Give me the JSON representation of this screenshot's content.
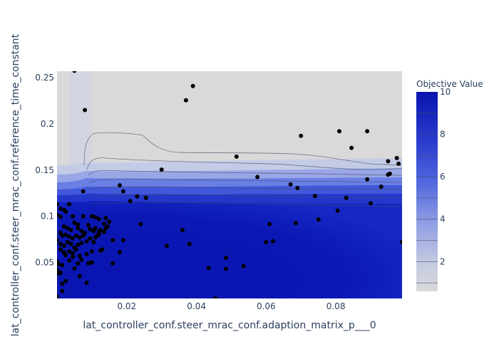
{
  "chart_data": {
    "type": "contour",
    "title": "",
    "xlabel": "lat_controller_conf.steer_mrac_conf.adaption_matrix_p___0",
    "ylabel": "lat_controller_conf.steer_mrac_conf.reference_time_constant",
    "xlim": [
      0.0,
      0.099
    ],
    "ylim": [
      0.011,
      0.257
    ],
    "x_ticks": [
      {
        "value": 0.02,
        "label": "0.02"
      },
      {
        "value": 0.04,
        "label": "0.04"
      },
      {
        "value": 0.06,
        "label": "0.06"
      },
      {
        "value": 0.08,
        "label": "0.08"
      }
    ],
    "y_ticks": [
      {
        "value": 0.05,
        "label": "0.05"
      },
      {
        "value": 0.1,
        "label": "0.1"
      },
      {
        "value": 0.15,
        "label": "0.15"
      },
      {
        "value": 0.2,
        "label": "0.2"
      },
      {
        "value": 0.25,
        "label": "0.25"
      }
    ],
    "colorbar": {
      "title": "Objective Value",
      "range": [
        0.6,
        10
      ],
      "ticks": [
        {
          "value": 2,
          "label": "2"
        },
        {
          "value": 4,
          "label": "4"
        },
        {
          "value": 6,
          "label": "6"
        },
        {
          "value": 8,
          "label": "8"
        },
        {
          "value": 10,
          "label": "10"
        }
      ],
      "color_low": "#d9d9d9",
      "color_high": "#0a14b0"
    },
    "grid": false,
    "points": [
      [
        0.005,
        0.2575
      ],
      [
        0.039,
        0.241
      ],
      [
        0.037,
        0.2255
      ],
      [
        0.008,
        0.215
      ],
      [
        0.07,
        0.187
      ],
      [
        0.081,
        0.192
      ],
      [
        0.089,
        0.192
      ],
      [
        0.0845,
        0.174
      ],
      [
        0.0515,
        0.1645
      ],
      [
        0.03,
        0.1505
      ],
      [
        0.0975,
        0.163
      ],
      [
        0.098,
        0.157
      ],
      [
        0.095,
        0.1595
      ],
      [
        0.0955,
        0.146
      ],
      [
        0.095,
        0.145
      ],
      [
        0.0575,
        0.1425
      ],
      [
        0.089,
        0.14
      ],
      [
        0.067,
        0.1345
      ],
      [
        0.069,
        0.1305
      ],
      [
        0.093,
        0.132
      ],
      [
        0.018,
        0.1335
      ],
      [
        0.019,
        0.127
      ],
      [
        0.0075,
        0.127
      ],
      [
        0.074,
        0.122
      ],
      [
        0.083,
        0.12
      ],
      [
        0.023,
        0.1215
      ],
      [
        0.0255,
        0.12
      ],
      [
        0.021,
        0.1165
      ],
      [
        0.0805,
        0.106
      ],
      [
        0.09,
        0.114
      ],
      [
        0.0035,
        0.113
      ],
      [
        0.0,
        0.113
      ],
      [
        0.002,
        0.107
      ],
      [
        0.0025,
        0.105
      ],
      [
        0.001,
        0.108
      ],
      [
        0.0,
        0.1015
      ],
      [
        0.001,
        0.0995
      ],
      [
        0.0045,
        0.1
      ],
      [
        0.0075,
        0.1
      ],
      [
        0.01,
        0.1
      ],
      [
        0.011,
        0.099
      ],
      [
        0.012,
        0.097
      ],
      [
        0.014,
        0.098
      ],
      [
        0.0135,
        0.092
      ],
      [
        0.075,
        0.0965
      ],
      [
        0.0685,
        0.0925
      ],
      [
        0.061,
        0.0915
      ],
      [
        0.024,
        0.0915
      ],
      [
        0.036,
        0.085
      ],
      [
        0.0145,
        0.089
      ],
      [
        0.015,
        0.094
      ],
      [
        0.009,
        0.0905
      ],
      [
        0.0095,
        0.086
      ],
      [
        0.0105,
        0.084
      ],
      [
        0.011,
        0.087
      ],
      [
        0.012,
        0.083
      ],
      [
        0.0125,
        0.085
      ],
      [
        0.0135,
        0.083
      ],
      [
        0.014,
        0.087
      ],
      [
        0.002,
        0.089
      ],
      [
        0.003,
        0.087
      ],
      [
        0.004,
        0.085
      ],
      [
        0.005,
        0.093
      ],
      [
        0.006,
        0.091
      ],
      [
        0.006,
        0.087
      ],
      [
        0.007,
        0.084
      ],
      [
        0.0075,
        0.079
      ],
      [
        0.008,
        0.082
      ],
      [
        0.001,
        0.082
      ],
      [
        0.0015,
        0.079
      ],
      [
        0.0025,
        0.08
      ],
      [
        0.0035,
        0.078
      ],
      [
        0.0045,
        0.076
      ],
      [
        0.0055,
        0.079
      ],
      [
        0.0065,
        0.077
      ],
      [
        0.0,
        0.074
      ],
      [
        0.001,
        0.07
      ],
      [
        0.002,
        0.068
      ],
      [
        0.003,
        0.072
      ],
      [
        0.004,
        0.07
      ],
      [
        0.005,
        0.066
      ],
      [
        0.006,
        0.069
      ],
      [
        0.007,
        0.071
      ],
      [
        0.0085,
        0.073
      ],
      [
        0.0095,
        0.076
      ],
      [
        0.0105,
        0.072
      ],
      [
        0.011,
        0.077
      ],
      [
        0.0115,
        0.079
      ],
      [
        0.012,
        0.08
      ],
      [
        0.016,
        0.074
      ],
      [
        0.019,
        0.074
      ],
      [
        0.0125,
        0.063
      ],
      [
        0.013,
        0.064
      ],
      [
        0.018,
        0.061
      ],
      [
        0.001,
        0.064
      ],
      [
        0.002,
        0.061
      ],
      [
        0.0025,
        0.058
      ],
      [
        0.0035,
        0.062
      ],
      [
        0.0045,
        0.06
      ],
      [
        0.0055,
        0.064
      ],
      [
        0.0065,
        0.057
      ],
      [
        0.007,
        0.053
      ],
      [
        0.0085,
        0.059
      ],
      [
        0.01,
        0.062
      ],
      [
        0.0,
        0.051
      ],
      [
        0.0005,
        0.048
      ],
      [
        0.0015,
        0.047
      ],
      [
        0.0035,
        0.052
      ],
      [
        0.0045,
        0.056
      ],
      [
        0.006,
        0.049
      ],
      [
        0.009,
        0.049
      ],
      [
        0.01,
        0.05
      ],
      [
        0.016,
        0.049
      ],
      [
        0.005,
        0.0435
      ],
      [
        0.0,
        0.042
      ],
      [
        0.001,
        0.039
      ],
      [
        0.0065,
        0.035
      ],
      [
        0.0085,
        0.028
      ],
      [
        0.0005,
        0.038
      ],
      [
        0.0015,
        0.027
      ],
      [
        0.0025,
        0.03
      ],
      [
        0.0015,
        0.019
      ],
      [
        0.0,
        0.013
      ],
      [
        0.0315,
        0.068
      ],
      [
        0.038,
        0.07
      ],
      [
        0.0485,
        0.055
      ],
      [
        0.0435,
        0.044
      ],
      [
        0.0485,
        0.043
      ],
      [
        0.0535,
        0.046
      ],
      [
        0.0455,
        0.011
      ],
      [
        0.06,
        0.072
      ],
      [
        0.062,
        0.073
      ],
      [
        0.099,
        0.072
      ]
    ]
  }
}
